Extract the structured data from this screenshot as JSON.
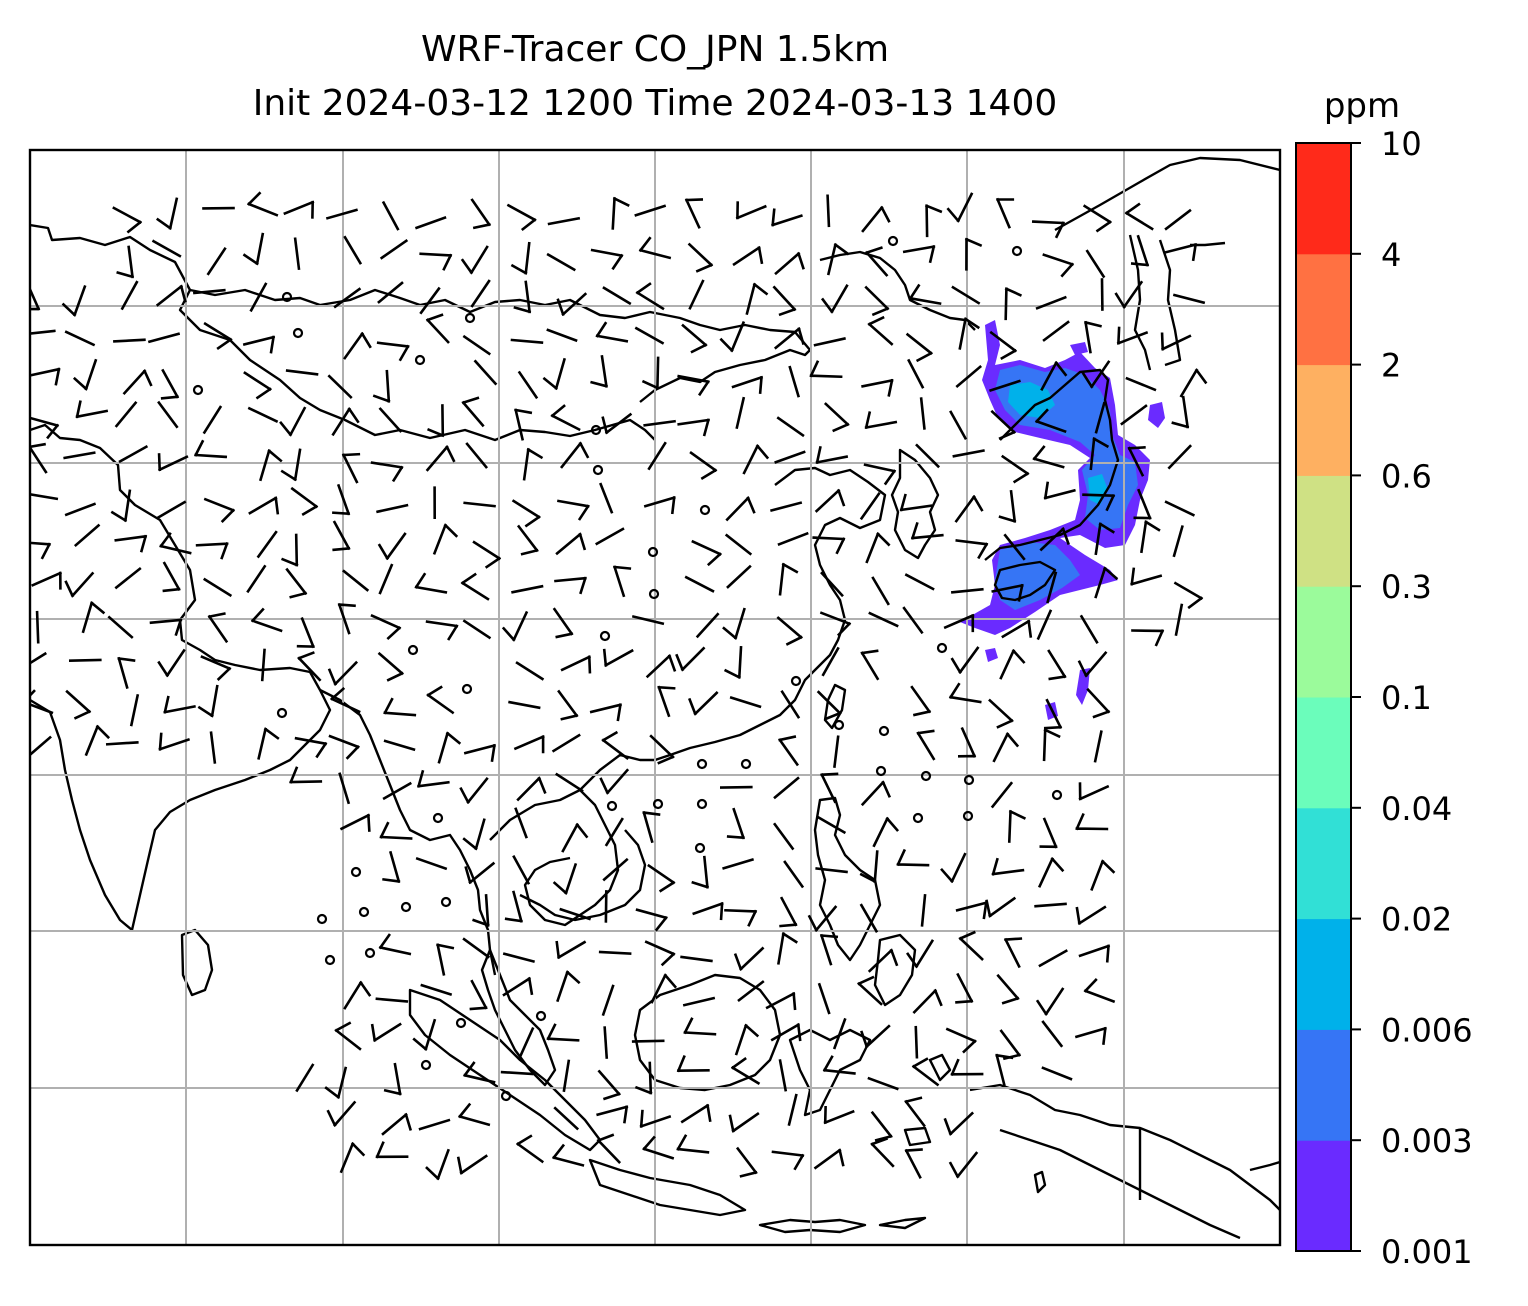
{
  "title": {
    "line1": "WRF-Tracer CO_JPN 1.5km",
    "line2": "Init 2024-03-12 1200 Time 2024-03-13 1400"
  },
  "colorbar": {
    "unit": "ppm",
    "levels": [
      "0.001",
      "0.003",
      "0.006",
      "0.02",
      "0.04",
      "0.1",
      "0.3",
      "0.6",
      "2",
      "4",
      "10"
    ],
    "colors": [
      "#6a2bff",
      "#3675f5",
      "#00b1ea",
      "#31e0d6",
      "#6bfdbb",
      "#9bfb9b",
      "#cfe184",
      "#feb061",
      "#ff7142",
      "#ff2a1a"
    ]
  },
  "map": {
    "features": [
      "coastlines",
      "gridlines",
      "wind-barbs",
      "co-tracer-plume"
    ],
    "gridline_color": "#b0b0b0",
    "plume_region": "off the coast of Japan"
  }
}
